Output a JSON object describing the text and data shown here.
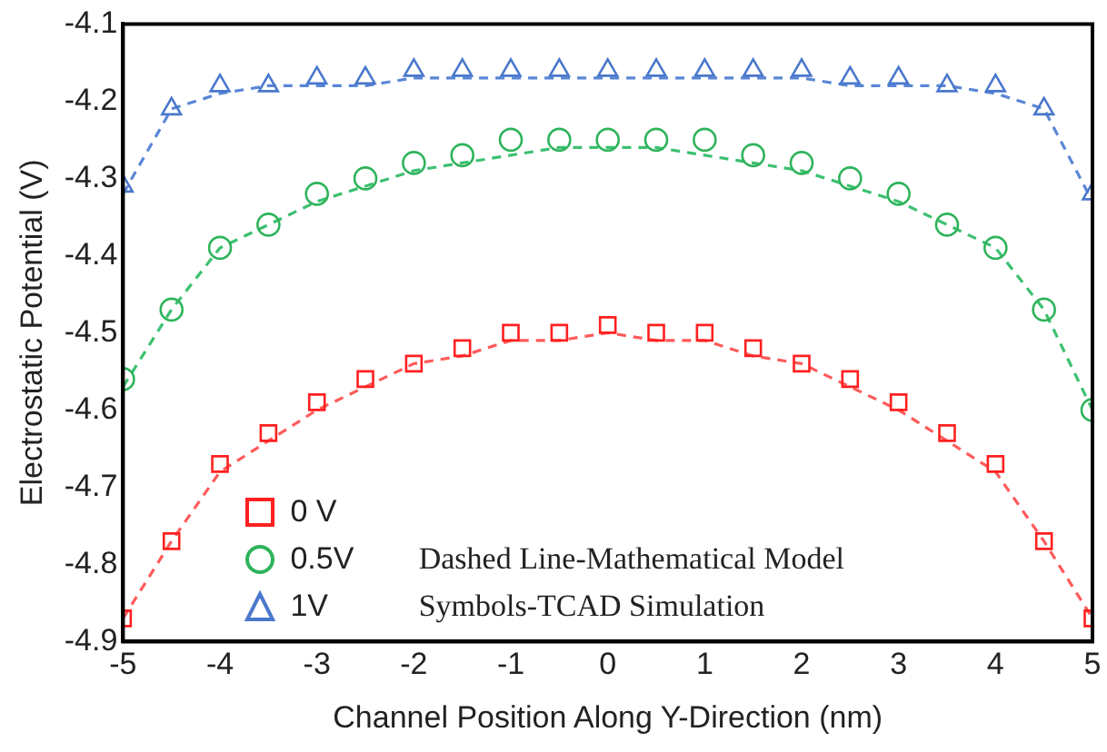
{
  "chart_data": {
    "type": "scatter",
    "xlabel": "Channel Position Along Y-Direction (nm)",
    "ylabel": "Electrostatic Potential (V)",
    "x": [
      -5,
      -4.5,
      -4,
      -3.5,
      -3,
      -2.5,
      -2,
      -1.5,
      -1,
      -0.5,
      0,
      0.5,
      1,
      1.5,
      2,
      2.5,
      3,
      3.5,
      4,
      4.5,
      5
    ],
    "series": [
      {
        "name": "0 V",
        "marker": "square",
        "color": "#ff2020",
        "values": [
          -4.87,
          -4.77,
          -4.67,
          -4.63,
          -4.59,
          -4.56,
          -4.54,
          -4.52,
          -4.5,
          -4.5,
          -4.49,
          -4.5,
          -4.5,
          -4.52,
          -4.54,
          -4.56,
          -4.59,
          -4.63,
          -4.67,
          -4.77,
          -4.87
        ]
      },
      {
        "name": "0.5V",
        "marker": "circle",
        "color": "#2eb35a",
        "values": [
          -4.56,
          -4.47,
          -4.39,
          -4.36,
          -4.32,
          -4.3,
          -4.28,
          -4.27,
          -4.25,
          -4.25,
          -4.25,
          -4.25,
          -4.25,
          -4.27,
          -4.28,
          -4.3,
          -4.32,
          -4.36,
          -4.39,
          -4.47,
          -4.6
        ]
      },
      {
        "name": "1V",
        "marker": "triangle",
        "color": "#4a78cc",
        "values": [
          -4.31,
          -4.21,
          -4.18,
          -4.18,
          -4.17,
          -4.17,
          -4.16,
          -4.16,
          -4.16,
          -4.16,
          -4.16,
          -4.16,
          -4.16,
          -4.16,
          -4.16,
          -4.17,
          -4.17,
          -4.18,
          -4.18,
          -4.21,
          -4.32
        ]
      },
      {
        "type": "line",
        "marker": "none",
        "line_style": "dashed",
        "color": "#ff5a5a",
        "values": [
          -4.87,
          -4.77,
          -4.68,
          -4.64,
          -4.6,
          -4.57,
          -4.54,
          -4.53,
          -4.51,
          -4.51,
          -4.5,
          -4.51,
          -4.51,
          -4.53,
          -4.54,
          -4.57,
          -4.6,
          -4.64,
          -4.68,
          -4.77,
          -4.87
        ]
      },
      {
        "type": "line",
        "marker": "none",
        "line_style": "dashed",
        "color": "#3cc070",
        "values": [
          -4.57,
          -4.47,
          -4.39,
          -4.36,
          -4.33,
          -4.31,
          -4.29,
          -4.28,
          -4.27,
          -4.26,
          -4.26,
          -4.26,
          -4.27,
          -4.28,
          -4.29,
          -4.31,
          -4.33,
          -4.36,
          -4.39,
          -4.47,
          -4.6
        ]
      },
      {
        "type": "line",
        "marker": "none",
        "line_style": "dashed",
        "color": "#5a86d6",
        "values": [
          -4.32,
          -4.21,
          -4.19,
          -4.18,
          -4.18,
          -4.18,
          -4.17,
          -4.17,
          -4.17,
          -4.17,
          -4.17,
          -4.17,
          -4.17,
          -4.17,
          -4.17,
          -4.18,
          -4.18,
          -4.18,
          -4.19,
          -4.21,
          -4.33
        ]
      }
    ],
    "xlim": [
      -5,
      5
    ],
    "xticks": [
      -5,
      -4,
      -3,
      -2,
      -1,
      0,
      1,
      2,
      3,
      4,
      5
    ],
    "ylim": [
      -4.9,
      -4.1
    ],
    "yticks": [
      -4.9,
      -4.8,
      -4.7,
      -4.6,
      -4.5,
      -4.4,
      -4.3,
      -4.2,
      -4.1
    ],
    "grid": false,
    "legend": "bottom left",
    "annotations": [
      "Dashed Line-Mathematical Model",
      "Symbols-TCAD Simulation"
    ]
  }
}
